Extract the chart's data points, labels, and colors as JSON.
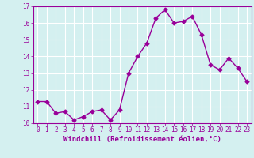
{
  "x": [
    0,
    1,
    2,
    3,
    4,
    5,
    6,
    7,
    8,
    9,
    10,
    11,
    12,
    13,
    14,
    15,
    16,
    17,
    18,
    19,
    20,
    21,
    22,
    23
  ],
  "y": [
    11.3,
    11.3,
    10.6,
    10.7,
    10.2,
    10.4,
    10.7,
    10.8,
    10.2,
    10.8,
    13.0,
    14.0,
    14.8,
    16.3,
    16.8,
    16.0,
    16.1,
    16.4,
    15.3,
    13.5,
    13.2,
    13.9,
    13.3,
    12.5
  ],
  "line_color": "#990099",
  "marker": "D",
  "markersize": 2.5,
  "linewidth": 1.0,
  "xlabel": "Windchill (Refroidissement éolien,°C)",
  "xlabel_fontsize": 6.5,
  "ylim": [
    10,
    17
  ],
  "xlim": [
    -0.5,
    23.5
  ],
  "yticks": [
    10,
    11,
    12,
    13,
    14,
    15,
    16,
    17
  ],
  "xticks": [
    0,
    1,
    2,
    3,
    4,
    5,
    6,
    7,
    8,
    9,
    10,
    11,
    12,
    13,
    14,
    15,
    16,
    17,
    18,
    19,
    20,
    21,
    22,
    23
  ],
  "tick_fontsize": 5.5,
  "bg_color": "#d4f0f0",
  "grid_color": "#b0dede",
  "line_border_color": "#888888",
  "purple": "#990099"
}
